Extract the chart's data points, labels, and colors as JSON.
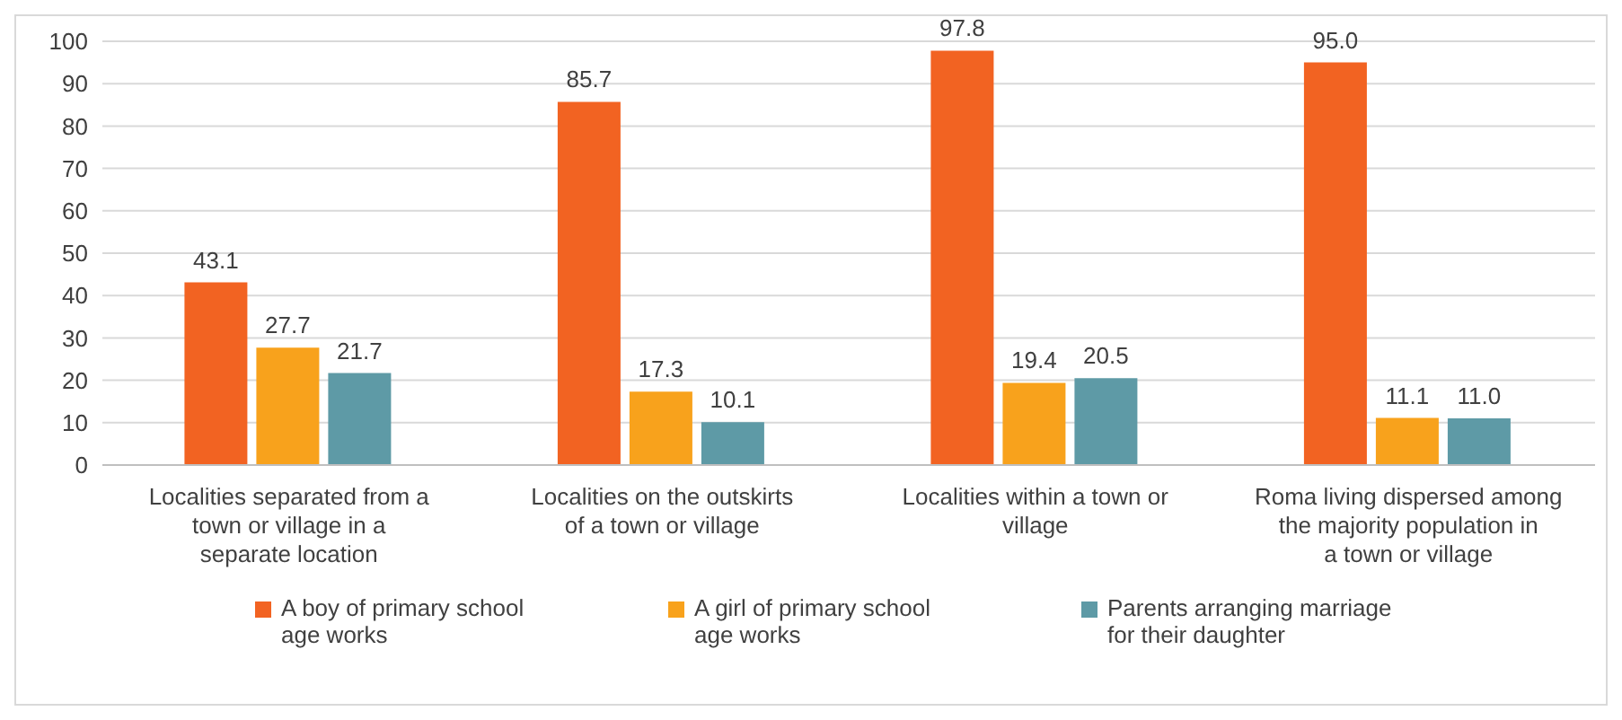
{
  "chart_data": {
    "type": "bar",
    "categories": [
      "Localities separated from a town or village in a separate location",
      "Localities on the outskirts of a town or village",
      "Localities within a town or village",
      "Roma living dispersed among the majority population in a town or village"
    ],
    "series": [
      {
        "name": "A boy of primary school age works",
        "color": "#f26322",
        "values": [
          43.1,
          85.7,
          97.8,
          95.0
        ]
      },
      {
        "name": "A girl of primary school age works",
        "color": "#f8a21c",
        "values": [
          27.7,
          17.3,
          19.4,
          11.1
        ]
      },
      {
        "name": "Parents arranging marriage for their daughter",
        "color": "#5e9aa6",
        "values": [
          21.7,
          10.1,
          20.5,
          11.0
        ]
      }
    ],
    "value_labels": [
      [
        "43.1",
        "85.7",
        "97.8",
        "95.0"
      ],
      [
        "27.7",
        "17.3",
        "19.4",
        "11.1"
      ],
      [
        "21.7",
        "10.1",
        "20.5",
        "11.0"
      ]
    ],
    "ylim": [
      0,
      100
    ],
    "yticks": [
      0,
      10,
      20,
      30,
      40,
      50,
      60,
      70,
      80,
      90,
      100
    ],
    "grid": "y",
    "legend": "bottom"
  }
}
